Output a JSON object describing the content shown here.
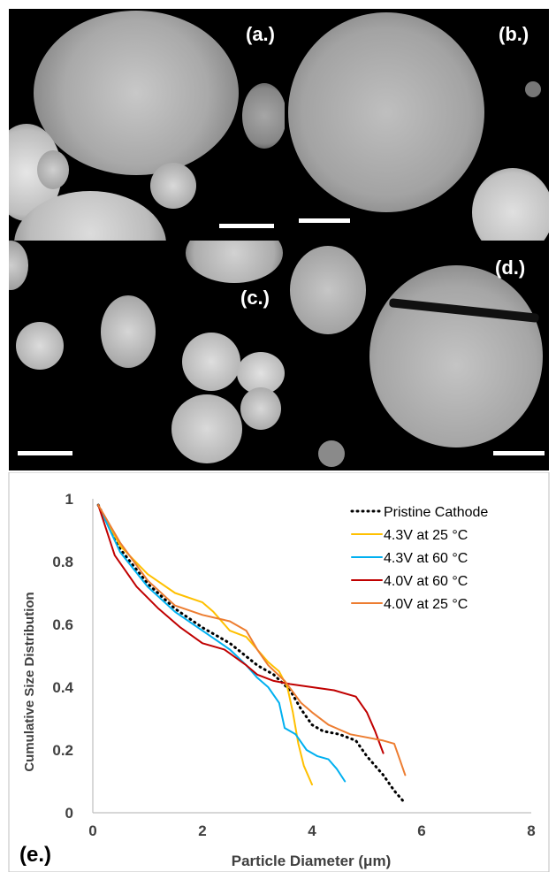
{
  "panels": [
    {
      "id": "a",
      "label": "(a.)"
    },
    {
      "id": "b",
      "label": "(b.)"
    },
    {
      "id": "c",
      "label": "(c.)"
    },
    {
      "id": "d",
      "label": "(d.)"
    },
    {
      "id": "e",
      "label": "(e.)"
    }
  ],
  "chart_data": {
    "type": "line",
    "title": "",
    "xlabel": "Particle Diameter (μm)",
    "ylabel": "Cumulative Size Distribution",
    "xlim": [
      0,
      8
    ],
    "ylim": [
      0,
      1
    ],
    "xticks": [
      0,
      2,
      4,
      6,
      8
    ],
    "yticks": [
      0,
      0.2,
      0.4,
      0.6,
      0.8,
      1
    ],
    "ytick_labels": [
      "0",
      "0.2",
      "0.4",
      "0.6",
      "0.8",
      "1"
    ],
    "grid": false,
    "legend": "top-right",
    "series": [
      {
        "name": "Pristine Cathode",
        "color": "#000000",
        "dash": "dotted",
        "x": [
          0.1,
          0.5,
          1.0,
          1.5,
          2.0,
          2.5,
          3.0,
          3.3,
          3.6,
          3.8,
          4.0,
          4.2,
          4.5,
          4.8,
          5.0,
          5.3,
          5.5,
          5.7
        ],
        "y": [
          0.98,
          0.84,
          0.73,
          0.65,
          0.59,
          0.54,
          0.47,
          0.44,
          0.39,
          0.33,
          0.28,
          0.26,
          0.25,
          0.23,
          0.18,
          0.12,
          0.07,
          0.03
        ]
      },
      {
        "name": "4.3V at 25 °C",
        "color": "#FFC000",
        "dash": "solid",
        "x": [
          0.1,
          0.5,
          1.0,
          1.5,
          2.0,
          2.2,
          2.5,
          2.8,
          3.0,
          3.2,
          3.4,
          3.55,
          3.65,
          3.75,
          3.85,
          4.0
        ],
        "y": [
          0.98,
          0.85,
          0.76,
          0.7,
          0.67,
          0.64,
          0.58,
          0.56,
          0.52,
          0.48,
          0.45,
          0.4,
          0.32,
          0.22,
          0.15,
          0.09
        ]
      },
      {
        "name": "4.3V at 60 °C",
        "color": "#00B0F0",
        "dash": "solid",
        "x": [
          0.1,
          0.5,
          1.0,
          1.5,
          2.0,
          2.5,
          2.8,
          3.0,
          3.2,
          3.4,
          3.5,
          3.7,
          3.9,
          4.1,
          4.3,
          4.45,
          4.6
        ],
        "y": [
          0.98,
          0.83,
          0.72,
          0.64,
          0.58,
          0.52,
          0.47,
          0.43,
          0.4,
          0.35,
          0.27,
          0.25,
          0.2,
          0.18,
          0.17,
          0.14,
          0.1
        ]
      },
      {
        "name": "4.0V at 60 °C",
        "color": "#C00000",
        "dash": "solid",
        "x": [
          0.1,
          0.4,
          0.8,
          1.2,
          1.6,
          2.0,
          2.4,
          2.8,
          3.0,
          3.3,
          3.6,
          4.0,
          4.4,
          4.8,
          5.0,
          5.15,
          5.3
        ],
        "y": [
          0.98,
          0.82,
          0.72,
          0.65,
          0.59,
          0.54,
          0.52,
          0.47,
          0.44,
          0.42,
          0.41,
          0.4,
          0.39,
          0.37,
          0.32,
          0.26,
          0.19
        ]
      },
      {
        "name": "4.0V at 25 °C",
        "color": "#ED7D31",
        "dash": "solid",
        "x": [
          0.1,
          0.5,
          1.0,
          1.5,
          2.0,
          2.5,
          2.8,
          3.0,
          3.2,
          3.5,
          3.8,
          4.0,
          4.3,
          4.7,
          5.0,
          5.3,
          5.5,
          5.6,
          5.7
        ],
        "y": [
          0.98,
          0.86,
          0.74,
          0.66,
          0.63,
          0.61,
          0.58,
          0.52,
          0.47,
          0.42,
          0.35,
          0.32,
          0.28,
          0.25,
          0.24,
          0.23,
          0.22,
          0.17,
          0.12
        ]
      }
    ]
  }
}
